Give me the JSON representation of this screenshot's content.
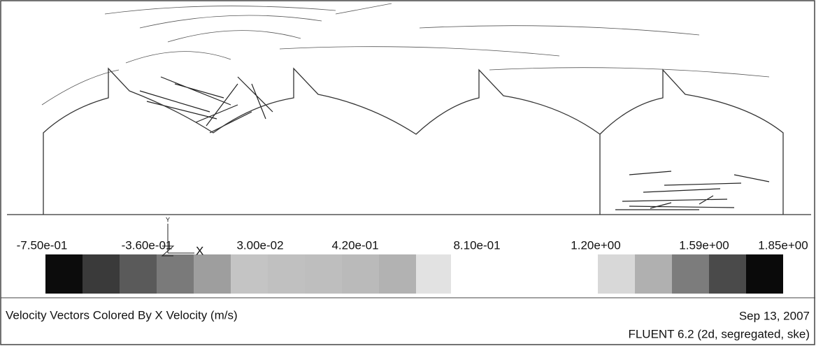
{
  "colorbar": {
    "labels": [
      "-7.50e-01",
      "-3.60e-01",
      "3.00e-02",
      "4.20e-01",
      "8.10e-01",
      "1.20e+00",
      "1.59e+00",
      "1.85e+00"
    ]
  },
  "axes": {
    "y": "Y",
    "x": "X"
  },
  "footer": {
    "title": "Velocity Vectors Colored By X Velocity (m/s)",
    "date": "Sep 13, 2007",
    "software": "FLUENT 6.2 (2d, segregated, ske)"
  }
}
